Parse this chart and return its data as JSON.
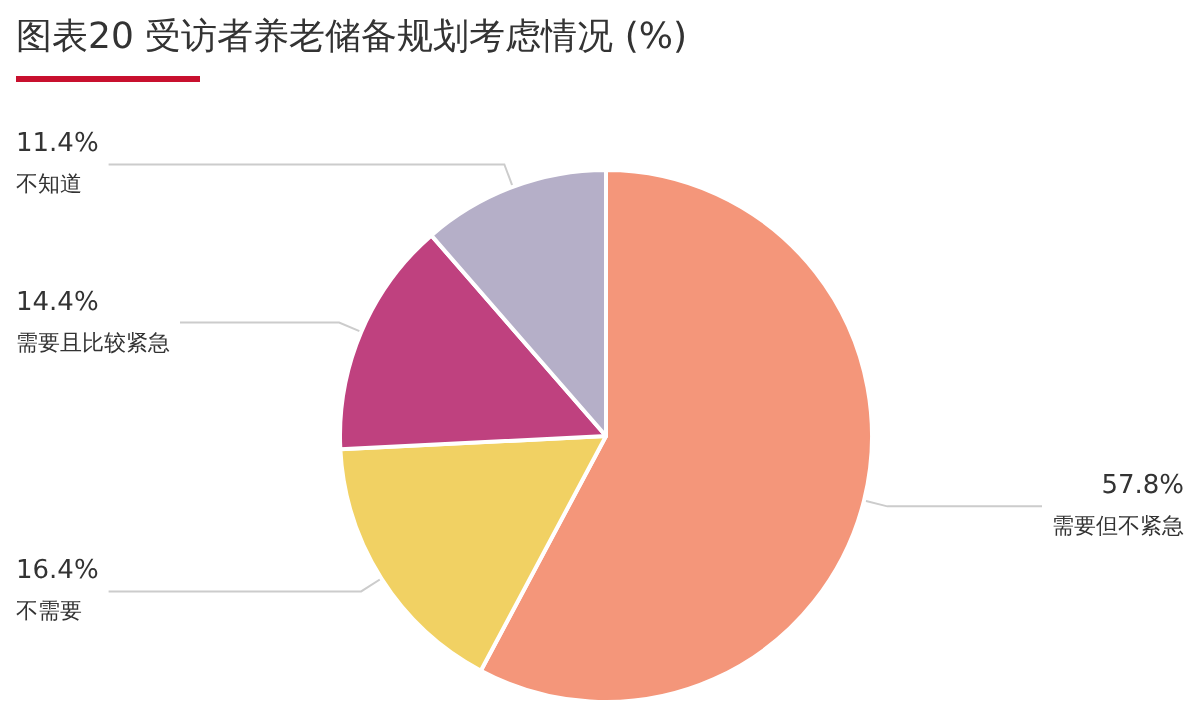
{
  "chart_data": {
    "type": "pie",
    "title": "图表20 受访者养老储备规划考虑情况 (%)",
    "categories": [
      "需要但不紧急",
      "不需要",
      "需要且比较紧急",
      "不知道"
    ],
    "values": [
      57.8,
      16.4,
      14.4,
      11.4
    ],
    "value_labels": [
      "57.8%",
      "16.4%",
      "14.4%",
      "11.4%"
    ],
    "colors": [
      "#f4967a",
      "#f1d163",
      "#bf417f",
      "#b5afc8"
    ],
    "legend": false
  }
}
